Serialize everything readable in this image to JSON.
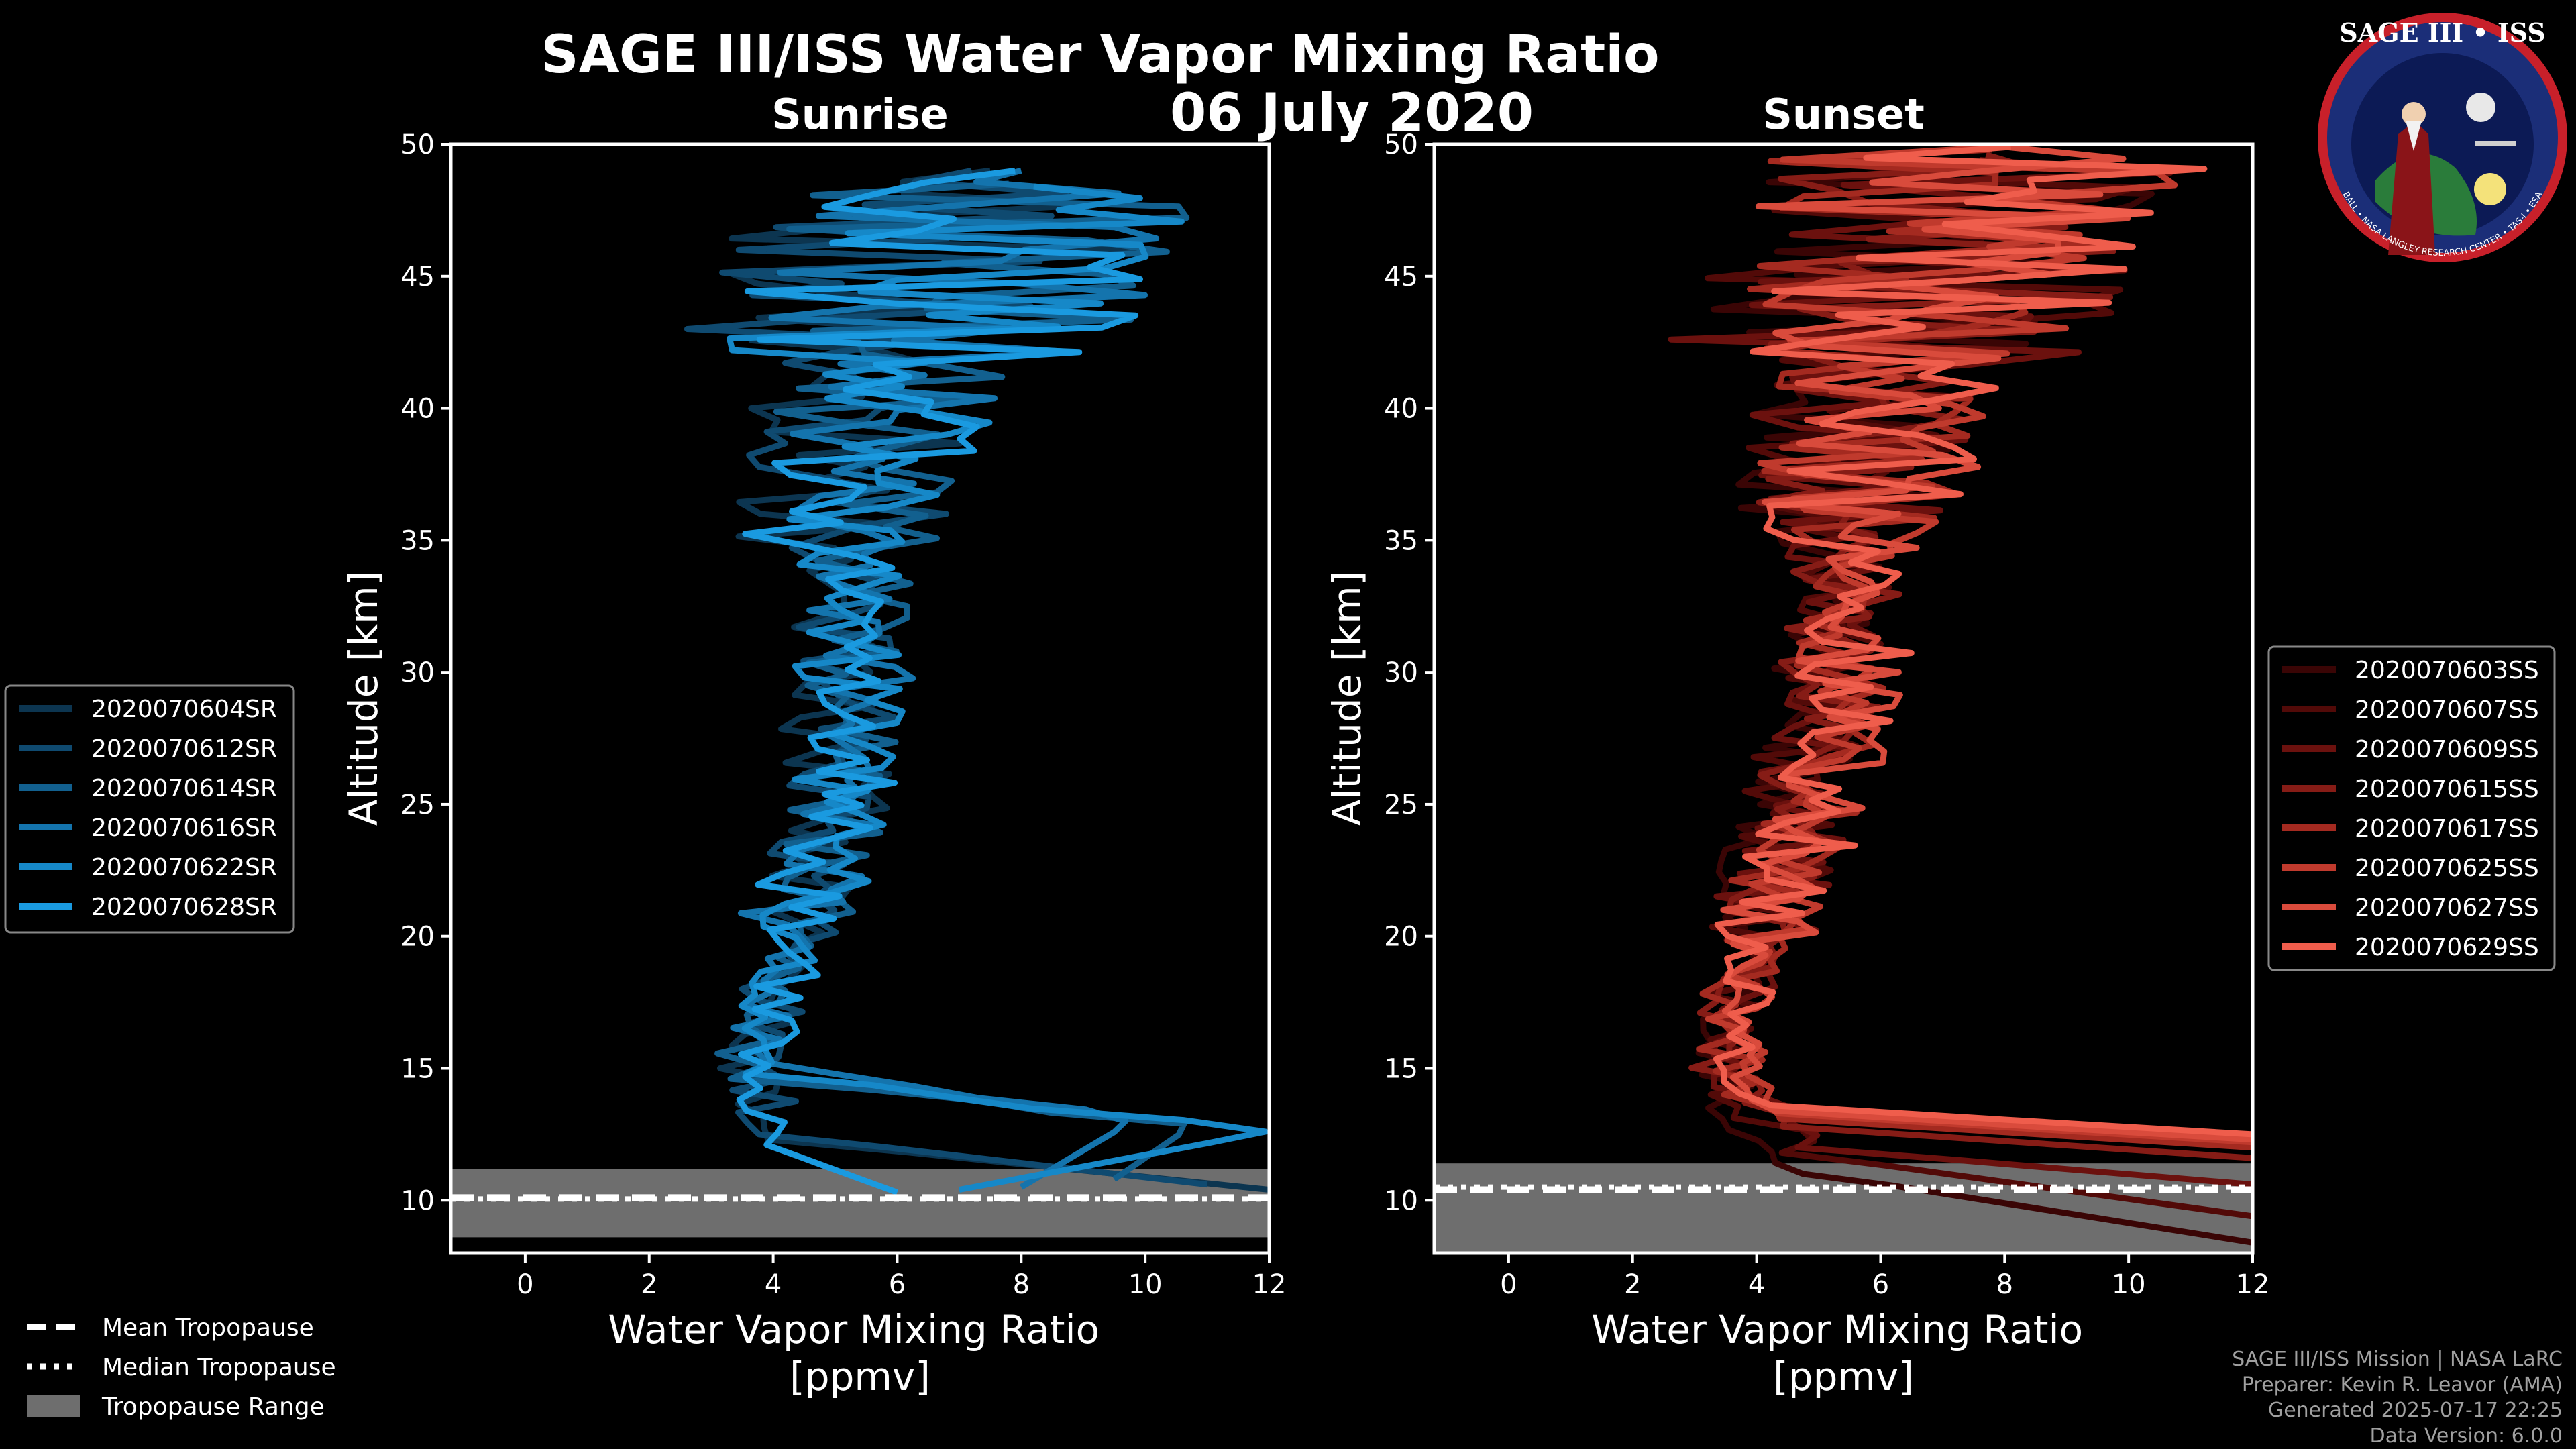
{
  "title": "SAGE III/ISS Water Vapor Mixing Ratio",
  "date": "06 July 2020",
  "legend_common": {
    "mean": "Mean Tropopause",
    "median": "Median Tropopause",
    "range": "Tropopause Range"
  },
  "footer": {
    "line1": "SAGE III/ISS Mission | NASA LaRC",
    "line2": "Preparer: Kevin R. Leavor (AMA)",
    "line3": "Generated 2025-07-17 22:25",
    "line4": "Data Version: 6.0.0"
  },
  "logo": {
    "text": "SAGE III • ISS",
    "ring_text": "BALL • NASA LANGLEY RESEARCH CENTER • TAS-I • ESA"
  },
  "colors": {
    "sunrise": [
      "#0c3550",
      "#0f4a70",
      "#12608f",
      "#1474ad",
      "#1688c8",
      "#1a9ae0"
    ],
    "sunset": [
      "#3a0505",
      "#520a08",
      "#6b110e",
      "#861c16",
      "#a42a20",
      "#c03a2d",
      "#d94b3c",
      "#ef5d4c"
    ],
    "tropopause_band": "#6e6e6e"
  },
  "chart_data": [
    {
      "type": "line",
      "title": "Sunrise",
      "xlabel": "Water Vapor Mixing Ratio\n[ppmv]",
      "ylabel": "Altitude [km]",
      "xlim": [
        -1.2,
        12
      ],
      "ylim": [
        8,
        50
      ],
      "xticks": [
        0,
        2,
        4,
        6,
        8,
        10,
        12
      ],
      "yticks": [
        10,
        15,
        20,
        25,
        30,
        35,
        40,
        45,
        50
      ],
      "legend_position": "left",
      "tropopause": {
        "mean": 10.1,
        "median": 10.05,
        "range": [
          8.6,
          11.2
        ]
      },
      "series": [
        {
          "name": "2020070604SR",
          "profile": [
            [
              12,
              10.4
            ],
            [
              4.2,
              12.3
            ],
            [
              3.6,
              15
            ],
            [
              4.2,
              18
            ],
            [
              4.6,
              21
            ],
            [
              5.1,
              24
            ],
            [
              5.0,
              27
            ],
            [
              4.9,
              30
            ],
            [
              5.0,
              33
            ],
            [
              5.1,
              36
            ],
            [
              5.3,
              40
            ],
            [
              5.8,
              43
            ],
            [
              6.5,
              46
            ],
            [
              7.5,
              49
            ]
          ]
        },
        {
          "name": "2020070612SR",
          "profile": [
            [
              11.0,
              10.6
            ],
            [
              4.0,
              12.5
            ],
            [
              3.8,
              15
            ],
            [
              4.0,
              18
            ],
            [
              4.7,
              21
            ],
            [
              4.9,
              24
            ],
            [
              5.2,
              27
            ],
            [
              5.3,
              30
            ],
            [
              5.2,
              33
            ],
            [
              5.0,
              36
            ],
            [
              5.5,
              40
            ],
            [
              6.0,
              43
            ],
            [
              6.8,
              46
            ],
            [
              7.2,
              49
            ]
          ]
        },
        {
          "name": "2020070614SR",
          "profile": [
            [
              9.5,
              10.8
            ],
            [
              10.8,
              12.9
            ],
            [
              3.5,
              14.6
            ],
            [
              3.9,
              17.5
            ],
            [
              4.5,
              20.5
            ],
            [
              5.0,
              23.5
            ],
            [
              5.3,
              26.5
            ],
            [
              5.0,
              29.5
            ],
            [
              5.4,
              32.5
            ],
            [
              5.2,
              35.5
            ],
            [
              5.6,
              39
            ],
            [
              6.2,
              42.5
            ],
            [
              7.0,
              45.5
            ],
            [
              7.8,
              48.5
            ]
          ]
        },
        {
          "name": "2020070616SR",
          "profile": [
            [
              8.0,
              10.5
            ],
            [
              9.8,
              13.0
            ],
            [
              3.7,
              15.2
            ],
            [
              4.1,
              18.3
            ],
            [
              4.4,
              21.3
            ],
            [
              5.2,
              24.2
            ],
            [
              5.1,
              27.2
            ],
            [
              5.5,
              30.2
            ],
            [
              5.3,
              33.2
            ],
            [
              5.4,
              36.2
            ],
            [
              5.7,
              39.5
            ],
            [
              6.4,
              43
            ],
            [
              7.2,
              46
            ],
            [
              8.0,
              49
            ]
          ]
        },
        {
          "name": "2020070622SR",
          "profile": [
            [
              7.0,
              10.4
            ],
            [
              12,
              12.6
            ],
            [
              3.4,
              14.8
            ],
            [
              4.0,
              17.8
            ],
            [
              4.6,
              20.8
            ],
            [
              4.8,
              23.8
            ],
            [
              5.4,
              26.8
            ],
            [
              5.2,
              29.8
            ],
            [
              5.1,
              32.8
            ],
            [
              5.5,
              35.8
            ],
            [
              5.9,
              39
            ],
            [
              6.6,
              42.2
            ],
            [
              7.4,
              45.3
            ],
            [
              8.2,
              48.4
            ]
          ]
        },
        {
          "name": "2020070628SR",
          "profile": [
            [
              6.0,
              10.3
            ],
            [
              3.9,
              12.1
            ],
            [
              3.6,
              15.1
            ],
            [
              4.2,
              18.1
            ],
            [
              4.5,
              21.1
            ],
            [
              5.0,
              24.1
            ],
            [
              5.3,
              27.1
            ],
            [
              5.6,
              30.1
            ],
            [
              5.4,
              33.1
            ],
            [
              5.3,
              36.1
            ],
            [
              5.8,
              39.3
            ],
            [
              6.3,
              42.6
            ],
            [
              7.1,
              45.8
            ],
            [
              7.9,
              49
            ]
          ]
        }
      ]
    },
    {
      "type": "line",
      "title": "Sunset",
      "xlabel": "Water Vapor Mixing Ratio\n[ppmv]",
      "ylabel": "Altitude [km]",
      "xlim": [
        -1.2,
        12
      ],
      "ylim": [
        8,
        50
      ],
      "xticks": [
        0,
        2,
        4,
        6,
        8,
        10,
        12
      ],
      "yticks": [
        10,
        15,
        20,
        25,
        30,
        35,
        40,
        45,
        50
      ],
      "legend_position": "right",
      "tropopause": {
        "mean": 10.4,
        "median": 10.5,
        "range": [
          8.0,
          11.4
        ]
      },
      "series": [
        {
          "name": "2020070603SS",
          "profile": [
            [
              12,
              8.4
            ],
            [
              5.0,
              11.0
            ],
            [
              3.6,
              13.5
            ],
            [
              3.4,
              16
            ],
            [
              3.8,
              19
            ],
            [
              4.2,
              22
            ],
            [
              4.6,
              25
            ],
            [
              4.9,
              28
            ],
            [
              5.1,
              31
            ],
            [
              5.2,
              34
            ],
            [
              5.4,
              38
            ],
            [
              5.9,
              42
            ],
            [
              6.6,
              45.5
            ],
            [
              7.4,
              49
            ]
          ]
        },
        {
          "name": "2020070607SS",
          "profile": [
            [
              12,
              9.4
            ],
            [
              4.6,
              11.8
            ],
            [
              3.7,
              14
            ],
            [
              3.5,
              16.5
            ],
            [
              3.9,
              19.5
            ],
            [
              4.3,
              22.5
            ],
            [
              4.7,
              25.5
            ],
            [
              5.0,
              28.5
            ],
            [
              5.2,
              31.5
            ],
            [
              5.3,
              34.5
            ],
            [
              5.5,
              38.5
            ],
            [
              6.0,
              42.3
            ],
            [
              6.7,
              45.8
            ],
            [
              7.5,
              49.2
            ]
          ]
        },
        {
          "name": "2020070609SS",
          "profile": [
            [
              12,
              10.6
            ],
            [
              4.8,
              12.0
            ],
            [
              3.8,
              14.3
            ],
            [
              3.6,
              16.8
            ],
            [
              4.0,
              19.8
            ],
            [
              4.4,
              22.8
            ],
            [
              4.8,
              25.8
            ],
            [
              5.1,
              28.8
            ],
            [
              5.3,
              31.8
            ],
            [
              5.4,
              34.8
            ],
            [
              5.6,
              38.8
            ],
            [
              6.1,
              42.6
            ],
            [
              6.8,
              46.1
            ],
            [
              7.6,
              49.4
            ]
          ]
        },
        {
          "name": "2020070615SS",
          "profile": [
            [
              12,
              11.6
            ],
            [
              4.5,
              12.8
            ],
            [
              3.5,
              14.6
            ],
            [
              3.5,
              17.1
            ],
            [
              4.0,
              20.1
            ],
            [
              4.5,
              23.1
            ],
            [
              4.9,
              26.1
            ],
            [
              5.2,
              29.1
            ],
            [
              5.4,
              32.1
            ],
            [
              5.5,
              35.1
            ],
            [
              5.7,
              39.1
            ],
            [
              6.2,
              42.9
            ],
            [
              6.9,
              46.4
            ],
            [
              7.7,
              49.6
            ]
          ]
        },
        {
          "name": "2020070617SS",
          "profile": [
            [
              12,
              12.0
            ],
            [
              4.4,
              13.1
            ],
            [
              3.6,
              14.9
            ],
            [
              3.6,
              17.4
            ],
            [
              4.1,
              20.4
            ],
            [
              4.6,
              23.4
            ],
            [
              5.0,
              26.4
            ],
            [
              5.3,
              29.4
            ],
            [
              5.5,
              32.4
            ],
            [
              5.6,
              35.4
            ],
            [
              5.8,
              39.4
            ],
            [
              6.3,
              43.2
            ],
            [
              7.0,
              46.7
            ],
            [
              7.8,
              49.8
            ]
          ]
        },
        {
          "name": "2020070625SS",
          "profile": [
            [
              12,
              12.2
            ],
            [
              4.3,
              13.3
            ],
            [
              3.7,
              15.2
            ],
            [
              3.7,
              17.7
            ],
            [
              4.2,
              20.7
            ],
            [
              4.7,
              23.7
            ],
            [
              5.1,
              26.7
            ],
            [
              5.4,
              29.7
            ],
            [
              5.6,
              32.7
            ],
            [
              5.7,
              35.7
            ],
            [
              5.9,
              39.7
            ],
            [
              6.4,
              43.5
            ],
            [
              7.1,
              47
            ],
            [
              7.9,
              49.9
            ]
          ]
        },
        {
          "name": "2020070627SS",
          "profile": [
            [
              12,
              12.3
            ],
            [
              4.2,
              13.4
            ],
            [
              3.5,
              15.5
            ],
            [
              3.8,
              18
            ],
            [
              4.3,
              21
            ],
            [
              4.8,
              24
            ],
            [
              5.2,
              27
            ],
            [
              5.5,
              30
            ],
            [
              5.7,
              33
            ],
            [
              5.8,
              36
            ],
            [
              6.0,
              40
            ],
            [
              6.5,
              43.8
            ],
            [
              7.2,
              47.2
            ],
            [
              8.0,
              49.9
            ]
          ]
        },
        {
          "name": "2020070629SS",
          "profile": [
            [
              12,
              12.5
            ],
            [
              4.1,
              13.6
            ],
            [
              3.6,
              15.8
            ],
            [
              3.9,
              18.3
            ],
            [
              4.4,
              21.3
            ],
            [
              4.9,
              24.3
            ],
            [
              5.3,
              27.3
            ],
            [
              5.6,
              30.3
            ],
            [
              5.8,
              33.3
            ],
            [
              5.9,
              36.3
            ],
            [
              6.1,
              40.3
            ],
            [
              6.6,
              44
            ],
            [
              7.3,
              47.4
            ],
            [
              8.1,
              49.9
            ]
          ]
        }
      ]
    }
  ]
}
